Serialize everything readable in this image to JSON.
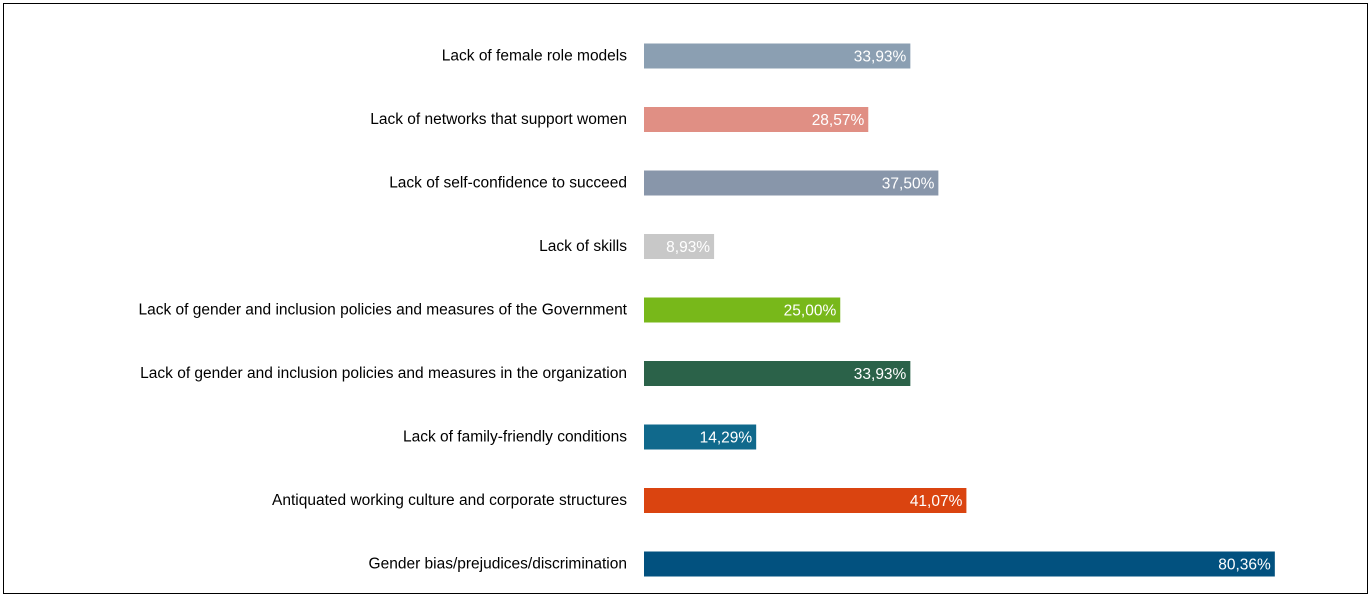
{
  "chart_data": {
    "type": "bar",
    "orientation": "horizontal",
    "categories": [
      "Lack of female role models",
      "Lack of networks that support women",
      "Lack of self-confidence to succeed",
      "Lack of skills",
      "Lack of gender and inclusion policies and measures of the Government",
      "Lack of gender and inclusion policies and measures in the organization",
      "Lack of family-friendly conditions",
      "Antiquated working culture and corporate structures",
      "Gender bias/prejudices/discrimination"
    ],
    "values": [
      33.93,
      28.57,
      37.5,
      8.93,
      25.0,
      33.93,
      14.29,
      41.07,
      80.36
    ],
    "value_labels": [
      "33,93%",
      "28,57%",
      "37,50%",
      "8,93%",
      "25,00%",
      "33,93%",
      "14,29%",
      "41,07%",
      "80,36%"
    ],
    "colors": [
      "#8b9fb2",
      "#e08f84",
      "#8896aa",
      "#c8c8c8",
      "#78b81a",
      "#2b6249",
      "#10698c",
      "#da4410",
      "#02517f"
    ],
    "title": "",
    "xlabel": "",
    "ylabel": "",
    "xlim": [
      0,
      100
    ],
    "grid": false,
    "legend": "none"
  }
}
